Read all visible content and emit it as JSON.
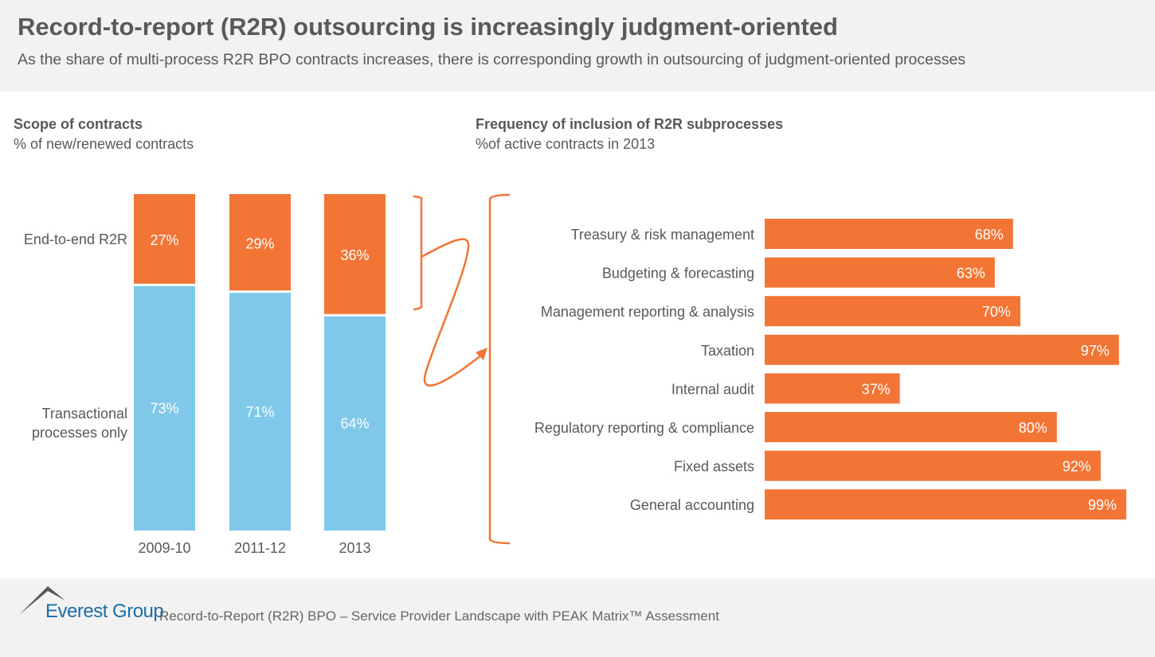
{
  "header": {
    "title": "Record-to-report (R2R) outsourcing is increasingly judgment-oriented",
    "subtitle": "As the share of multi-process R2R BPO contracts increases, there is corresponding growth in outsourcing of judgment-oriented processes"
  },
  "colors": {
    "orange": "#f27535",
    "blue": "#7fc8ea",
    "text": "#595959",
    "brand": "#1b6ea6"
  },
  "chart_data": [
    {
      "type": "bar",
      "stacked": true,
      "title": "Scope of contracts",
      "subtitle": "% of new/renewed contracts",
      "categories": [
        "2009-10",
        "2011-12",
        "2013"
      ],
      "series": [
        {
          "name": "End-to-end R2R",
          "values": [
            27,
            29,
            36
          ],
          "labels": [
            "27%",
            "29%",
            "36%"
          ],
          "color": "#f27535"
        },
        {
          "name": "Transactional processes only",
          "values": [
            73,
            71,
            64
          ],
          "labels": [
            "73%",
            "71%",
            "64%"
          ],
          "color": "#7fc8ea"
        }
      ]
    },
    {
      "type": "bar",
      "orientation": "horizontal",
      "title": "Frequency of inclusion of R2R subprocesses",
      "subtitle": "%of active contracts in 2013",
      "categories": [
        "Treasury & risk management",
        "Budgeting & forecasting",
        "Management reporting & analysis",
        "Taxation",
        "Internal audit",
        "Regulatory reporting & compliance",
        "Fixed assets",
        "General accounting"
      ],
      "values": [
        68,
        63,
        70,
        97,
        37,
        80,
        92,
        99
      ],
      "labels": [
        "68%",
        "63%",
        "70%",
        "97%",
        "37%",
        "80%",
        "92%",
        "99%"
      ],
      "xlim": [
        0,
        100
      ],
      "color": "#f27535"
    }
  ],
  "footer": {
    "brand": "Everest Group",
    "text": "Record-to-Report (R2R) BPO – Service Provider Landscape with PEAK Matrix™ Assessment"
  }
}
